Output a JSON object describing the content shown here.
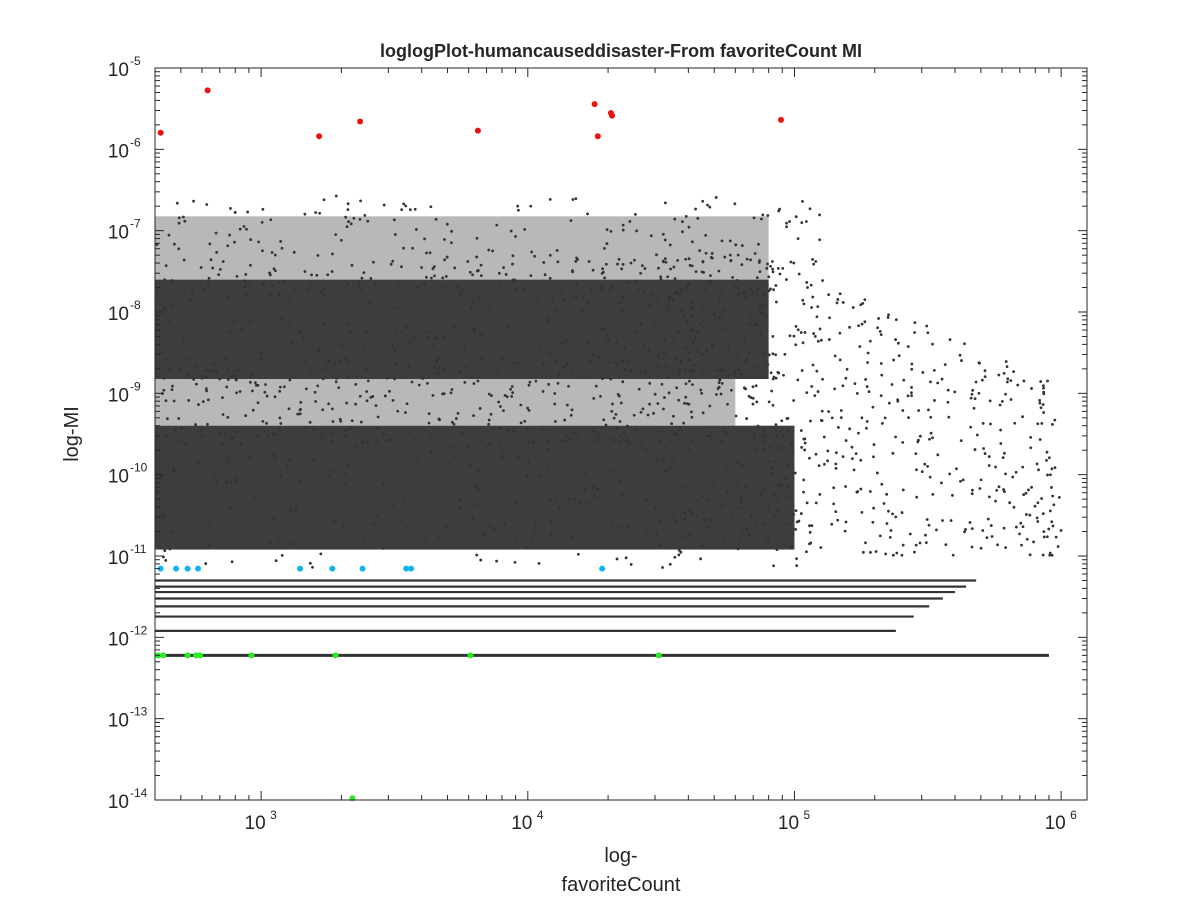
{
  "chart_data": {
    "type": "scatter",
    "title": "loglogPlot-humancauseddisaster-From favoriteCount MI",
    "xlabel_lines": [
      "log-",
      "favoriteCount"
    ],
    "ylabel": "log-MI",
    "x_scale": "log",
    "y_scale": "log",
    "xlim": [
      400,
      1250000
    ],
    "ylim": [
      1e-14,
      1e-05
    ],
    "x_ticks": [
      {
        "value": 1000,
        "base": "10",
        "exp": "3"
      },
      {
        "value": 10000,
        "base": "10",
        "exp": "4"
      },
      {
        "value": 100000,
        "base": "10",
        "exp": "5"
      },
      {
        "value": 1000000,
        "base": "10",
        "exp": "6"
      }
    ],
    "y_ticks": [
      {
        "value": 1e-14,
        "base": "10",
        "exp": "-14"
      },
      {
        "value": 1e-13,
        "base": "10",
        "exp": "-13"
      },
      {
        "value": 1e-12,
        "base": "10",
        "exp": "-12"
      },
      {
        "value": 1e-11,
        "base": "10",
        "exp": "-11"
      },
      {
        "value": 1e-10,
        "base": "10",
        "exp": "-10"
      },
      {
        "value": 1e-09,
        "base": "10",
        "exp": "-9"
      },
      {
        "value": 1e-08,
        "base": "10",
        "exp": "-8"
      },
      {
        "value": 1e-07,
        "base": "10",
        "exp": "-7"
      },
      {
        "value": 1e-06,
        "base": "10",
        "exp": "-6"
      },
      {
        "value": 1e-05,
        "base": "10",
        "exp": "-5"
      }
    ],
    "grid": false,
    "legend": "none",
    "colors": {
      "bulk": "#333333",
      "top": "#ee1111",
      "mid": "#11b4ee",
      "low": "#22ee22",
      "axis": "#262626"
    },
    "bulk_points": {
      "color": "#333333",
      "bands": [
        {
          "x_range": [
            400,
            80000
          ],
          "y_range": [
            1.5e-09,
            2.5e-08
          ]
        },
        {
          "x_range": [
            400,
            100000
          ],
          "y_range": [
            1.2e-11,
            4e-10
          ]
        },
        {
          "x_range": [
            400,
            80000
          ],
          "y_range": [
            2.5e-08,
            1.5e-07
          ]
        },
        {
          "x_range": [
            400,
            60000
          ],
          "y_range": [
            4e-10,
            1.5e-09
          ]
        }
      ],
      "scatter_tail": {
        "x_range": [
          30000,
          1000000
        ],
        "y_range": [
          1e-11,
          2e-07
        ]
      },
      "levels": [
        6e-13,
        1.2e-12,
        1.8e-12,
        2.4e-12,
        3e-12,
        3.6e-12,
        4.2e-12,
        5e-12
      ]
    },
    "series": [
      {
        "color": "#ee1111",
        "points": [
          [
            420,
            1.6e-06
          ],
          [
            630,
            5.3e-06
          ],
          [
            1650,
            1.45e-06
          ],
          [
            2350,
            2.2e-06
          ],
          [
            6500,
            1.7e-06
          ],
          [
            17800,
            3.6e-06
          ],
          [
            18300,
            1.45e-06
          ],
          [
            20500,
            2.8e-06
          ],
          [
            20700,
            2.6e-06
          ],
          [
            89000,
            2.3e-06
          ]
        ]
      },
      {
        "color": "#11b4ee",
        "points": [
          [
            420,
            7e-12
          ],
          [
            480,
            7e-12
          ],
          [
            530,
            7e-12
          ],
          [
            580,
            7e-12
          ],
          [
            1400,
            7e-12
          ],
          [
            1850,
            7e-12
          ],
          [
            2400,
            7e-12
          ],
          [
            3500,
            7e-12
          ],
          [
            3650,
            7e-12
          ],
          [
            19000,
            7e-12
          ]
        ]
      },
      {
        "color": "#22ee22",
        "points": [
          [
            410,
            6e-13
          ],
          [
            430,
            6e-13
          ],
          [
            530,
            6e-13
          ],
          [
            570,
            6e-13
          ],
          [
            590,
            6e-13
          ],
          [
            920,
            6e-13
          ],
          [
            1900,
            6e-13
          ],
          [
            6100,
            6e-13
          ],
          [
            31000,
            6e-13
          ],
          [
            2200,
            1.05e-14
          ]
        ]
      }
    ]
  }
}
